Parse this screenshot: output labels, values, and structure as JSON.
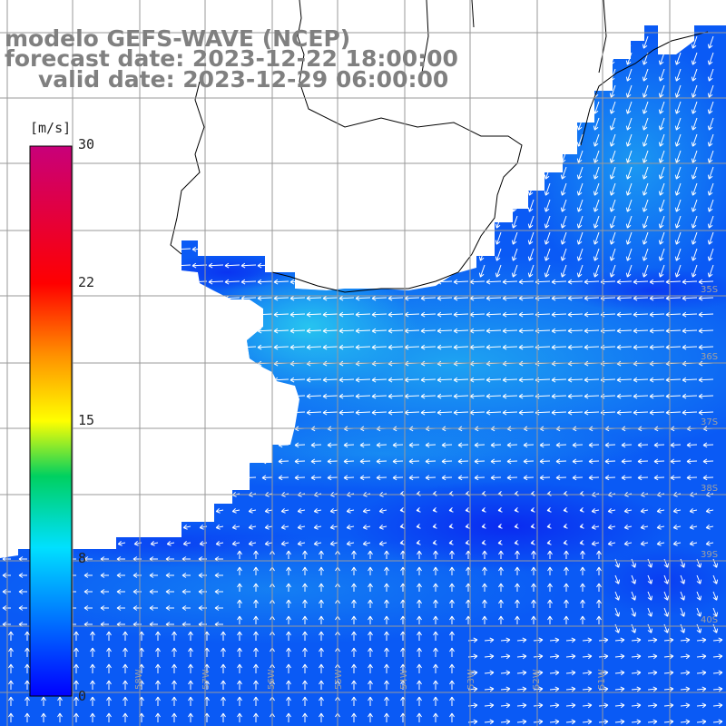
{
  "title_lines": [
    "modelo GEFS-WAVE (NCEP)",
    "forecast date: 2023-12-22 18:00:00",
    "valid date: 2023-12-29 06:00:00"
  ],
  "colorbar": {
    "unit": "[m/s]",
    "min": 0,
    "max": 30,
    "ticks": [
      "30",
      "22",
      "15",
      "8",
      "0"
    ]
  },
  "grid_labels": {
    "latitudes": [
      "35S",
      "36S",
      "37S",
      "38S",
      "39S",
      "40S"
    ],
    "longitudes": [
      "58W",
      "57W",
      "56W",
      "55W",
      "54W",
      "53W",
      "52W",
      "51W"
    ]
  },
  "colors": {
    "sea_dark": "#0a28f0",
    "sea_mid": "#0a5af5",
    "sea_light": "#1e96f5",
    "sea_bright": "#28c8f0",
    "land": "#ffffff",
    "grid": "#9a9a9a",
    "arrows": "#ffffff",
    "title": "#808080"
  }
}
